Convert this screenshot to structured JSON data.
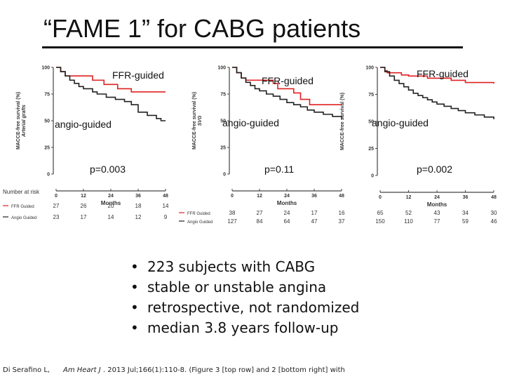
{
  "title": "“FAME 1” for CABG patients",
  "bullets": [
    "223 subjects with CABG",
    "stable or unstable angina",
    "retrospective, not randomized",
    "median 3.8 years follow-up"
  ],
  "footer": {
    "author": "Di Serafino L,",
    "journal": "Am Heart J",
    "rest": ". 2013 Jul;166(1):110-8. (Figure 3 [top row] and 2 [bottom right] with"
  },
  "colors": {
    "ffr": "#e02020",
    "angio": "#222222"
  },
  "chart_data": [
    {
      "type": "line",
      "ylabel": "MACCE-free survival (%)",
      "ylabel_sub": "Arterial grafts",
      "xlabel": "Months",
      "x_ticks": [
        0,
        12,
        24,
        36,
        48
      ],
      "y_ticks": [
        0,
        25,
        50,
        75,
        100
      ],
      "xlim": [
        0,
        48
      ],
      "ylim": [
        0,
        100
      ],
      "annotations": {
        "ffr": "FFR-guided",
        "angio": "angio-guided",
        "p": "p=0.003"
      },
      "series": [
        {
          "name": "FFR Guided",
          "x": [
            0,
            2,
            4,
            9,
            12,
            16,
            21,
            24,
            27,
            30,
            33,
            48
          ],
          "y": [
            100,
            96,
            92,
            92,
            92,
            88,
            84,
            84,
            80,
            80,
            77,
            77
          ]
        },
        {
          "name": "Angio Guided",
          "x": [
            0,
            2,
            4,
            6,
            8,
            10,
            12,
            16,
            18,
            22,
            26,
            30,
            33,
            36,
            40,
            44,
            46,
            48
          ],
          "y": [
            100,
            96,
            92,
            88,
            85,
            82,
            80,
            77,
            75,
            72,
            70,
            68,
            65,
            58,
            55,
            52,
            50,
            50
          ]
        }
      ],
      "risk_table": {
        "title": "Number at risk",
        "rows": [
          {
            "name": "FFR Guided",
            "values": [
              27,
              26,
              20,
              18,
              14
            ]
          },
          {
            "name": "Angio Guided",
            "values": [
              23,
              17,
              14,
              12,
              9
            ]
          }
        ]
      }
    },
    {
      "type": "line",
      "ylabel": "MACCE-free survival (%)",
      "ylabel_sub": "SVG",
      "xlabel": "Months",
      "x_ticks": [
        0,
        12,
        24,
        36,
        48
      ],
      "y_ticks": [
        0,
        25,
        50,
        75,
        100
      ],
      "xlim": [
        0,
        48
      ],
      "ylim": [
        0,
        100
      ],
      "annotations": {
        "ffr": "FFR-guided",
        "angio": "angio-guided",
        "p": "p=0.11"
      },
      "series": [
        {
          "name": "FFR Guided",
          "x": [
            0,
            2,
            4,
            6,
            12,
            18,
            20,
            24,
            27,
            30,
            34,
            48
          ],
          "y": [
            100,
            95,
            90,
            88,
            88,
            85,
            80,
            80,
            76,
            70,
            65,
            65
          ]
        },
        {
          "name": "Angio Guided",
          "x": [
            0,
            2,
            4,
            6,
            8,
            10,
            12,
            15,
            18,
            21,
            24,
            27,
            30,
            33,
            36,
            40,
            44,
            48
          ],
          "y": [
            100,
            95,
            90,
            86,
            83,
            80,
            78,
            75,
            73,
            70,
            67,
            65,
            63,
            60,
            58,
            56,
            54,
            52
          ]
        }
      ],
      "risk_table": {
        "title": "",
        "rows": [
          {
            "name": "FFR Guided",
            "values": [
              38,
              27,
              24,
              17,
              16
            ]
          },
          {
            "name": "Angio Guided",
            "values": [
              127,
              84,
              64,
              47,
              37
            ]
          }
        ]
      }
    },
    {
      "type": "line",
      "ylabel": "MACCE-free survival (%)",
      "ylabel_sub": "",
      "xlabel": "Months",
      "x_ticks": [
        0,
        12,
        24,
        36,
        48
      ],
      "y_ticks": [
        0,
        25,
        50,
        75,
        100
      ],
      "xlim": [
        0,
        48
      ],
      "ylim": [
        0,
        100
      ],
      "annotations": {
        "ffr": "FFR-guided",
        "angio": "angio-guided",
        "p": "p=0.002"
      },
      "series": [
        {
          "name": "FFR Guided",
          "x": [
            0,
            2,
            3,
            6,
            9,
            12,
            20,
            24,
            30,
            36,
            48
          ],
          "y": [
            100,
            97,
            95,
            95,
            93,
            92,
            90,
            90,
            88,
            86,
            85
          ]
        },
        {
          "name": "Angio Guided",
          "x": [
            0,
            2,
            4,
            6,
            8,
            10,
            12,
            14,
            16,
            18,
            20,
            22,
            24,
            27,
            30,
            33,
            36,
            40,
            44,
            48
          ],
          "y": [
            100,
            96,
            92,
            88,
            85,
            82,
            79,
            76,
            74,
            72,
            70,
            68,
            66,
            64,
            62,
            60,
            58,
            56,
            54,
            52
          ]
        }
      ],
      "risk_table": {
        "title": "",
        "rows": [
          {
            "name": "",
            "values": [
              65,
              52,
              43,
              34,
              30
            ]
          },
          {
            "name": "",
            "values": [
              150,
              110,
              77,
              59,
              46
            ]
          }
        ]
      }
    }
  ]
}
